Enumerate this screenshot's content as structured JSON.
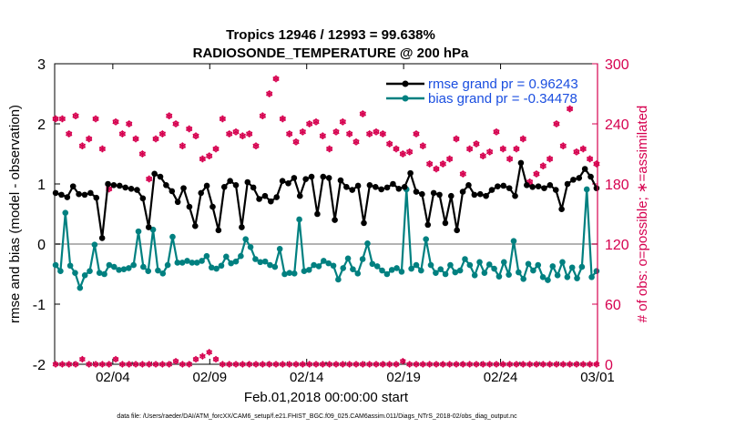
{
  "chart_data": {
    "type": "line",
    "title": "Tropics 12946 / 12993 = 99.638%",
    "subtitle": "RADIOSONDE_TEMPERATURE @ 200 hPa",
    "xlabel": "Feb.01,2018 00:00:00 start",
    "ylabel_left": "rmse and bias (model - observation)",
    "ylabel_right": "# of obs: o=possible; ∗=assimilated",
    "ylim_left": [
      -2,
      3
    ],
    "ylim_right": [
      0,
      300
    ],
    "xlim_days": [
      0,
      28
    ],
    "x_ticks": [
      {
        "day": 3,
        "label": "02/04"
      },
      {
        "day": 8,
        "label": "02/09"
      },
      {
        "day": 13,
        "label": "02/14"
      },
      {
        "day": 18,
        "label": "02/19"
      },
      {
        "day": 23,
        "label": "02/24"
      },
      {
        "day": 28,
        "label": "03/01"
      }
    ],
    "y_ticks_left": [
      "-2",
      "-1",
      "0",
      "1",
      "2",
      "3"
    ],
    "y_ticks_right": [
      "0",
      "60",
      "120",
      "180",
      "240",
      "300"
    ],
    "legend": {
      "position": "top-right",
      "entries": [
        "rmse grand pr = 0.96243",
        "bias grand pr = -0.34478"
      ]
    },
    "colors": {
      "rmse": "#000000",
      "bias": "#008080",
      "obs": "#d6004f",
      "legend_text": "#1a4ee0",
      "zero_line": "#b3b3b3"
    },
    "series": [
      {
        "name": "rmse",
        "values": [
          0.85,
          0.82,
          0.78,
          0.96,
          0.83,
          0.82,
          0.85,
          0.77,
          0.1,
          1.0,
          0.98,
          0.97,
          0.94,
          0.92,
          0.9,
          0.76,
          0.28,
          1.17,
          1.12,
          0.98,
          0.88,
          0.7,
          0.93,
          0.62,
          0.3,
          0.85,
          0.97,
          0.62,
          0.23,
          0.95,
          1.05,
          0.98,
          0.28,
          1.03,
          0.94,
          0.75,
          0.8,
          0.71,
          0.78,
          1.05,
          1.01,
          1.1,
          0.8,
          1.08,
          1.12,
          0.5,
          1.12,
          1.1,
          0.4,
          1.06,
          0.95,
          0.9,
          0.97,
          0.35,
          0.98,
          0.95,
          0.91,
          0.94,
          1.0,
          0.92,
          0.95,
          1.18,
          0.87,
          0.83,
          0.32,
          0.85,
          0.82,
          0.35,
          0.8,
          0.23,
          0.87,
          0.98,
          0.82,
          0.83,
          0.8,
          0.9,
          0.96,
          0.97,
          0.93,
          0.8,
          1.35,
          0.98,
          0.95,
          0.96,
          0.93,
          0.98,
          0.9,
          0.58,
          1.0,
          1.07,
          1.1,
          1.25,
          1.12,
          0.93
        ]
      },
      {
        "name": "bias",
        "values": [
          -0.35,
          -0.45,
          0.52,
          -0.36,
          -0.48,
          -0.73,
          -0.52,
          -0.45,
          -0.01,
          -0.48,
          -0.5,
          -0.35,
          -0.38,
          -0.43,
          -0.42,
          -0.4,
          -0.35,
          0.21,
          -0.38,
          -0.45,
          0.24,
          -0.44,
          -0.49,
          -0.35,
          0.12,
          -0.31,
          -0.31,
          -0.28,
          -0.31,
          -0.31,
          -0.28,
          -0.2,
          -0.39,
          -0.41,
          -0.36,
          -0.21,
          -0.32,
          -0.29,
          -0.2,
          0.08,
          -0.05,
          -0.25,
          -0.3,
          -0.29,
          -0.35,
          -0.38,
          -0.08,
          -0.5,
          -0.48,
          -0.49,
          0.41,
          -0.45,
          -0.43,
          -0.35,
          -0.37,
          -0.28,
          -0.32,
          -0.36,
          -0.59,
          -0.4,
          -0.24,
          -0.42,
          -0.49,
          -0.25,
          0.01,
          -0.33,
          -0.37,
          -0.44,
          -0.5,
          -0.43,
          -0.4,
          -0.46,
          0.91,
          -0.41,
          -0.35,
          -0.44,
          0.08,
          -0.35,
          -0.48,
          -0.42,
          -0.5,
          -0.35,
          -0.47,
          -0.44,
          -0.25,
          -0.35,
          -0.52,
          -0.3,
          -0.48,
          -0.34,
          -0.41,
          -0.54,
          -0.3,
          -0.51,
          0.05,
          -0.47,
          -0.58,
          -0.33,
          -0.44,
          -0.35,
          -0.55,
          -0.6,
          -0.37,
          -0.52,
          -0.3,
          -0.55,
          -0.39,
          -0.57,
          -0.38,
          0.91,
          -0.55,
          -0.45
        ]
      },
      {
        "name": "obs_possible",
        "values": [
          245,
          245,
          230,
          248,
          218,
          225,
          245,
          215,
          175,
          242,
          230,
          240,
          225,
          210,
          185,
          225,
          230,
          248,
          240,
          218,
          235,
          228,
          205,
          208,
          215,
          245,
          230,
          232,
          228,
          230,
          218,
          248,
          270,
          285,
          245,
          230,
          222,
          232,
          240,
          242,
          228,
          215,
          232,
          242,
          230,
          222,
          250,
          230,
          232,
          230,
          220,
          215,
          210,
          212,
          230,
          218,
          200,
          195,
          200,
          205,
          225,
          190,
          215,
          220,
          208,
          212,
          232,
          215,
          205,
          215,
          225,
          182,
          190,
          198,
          205,
          240,
          218,
          255,
          212,
          215,
          205,
          200
        ]
      },
      {
        "name": "obs_assimilated",
        "values": [
          0,
          0,
          0,
          0,
          5,
          0,
          0,
          0,
          0,
          5,
          0,
          0,
          0,
          0,
          0,
          0,
          0,
          0,
          3,
          0,
          0,
          5,
          8,
          12,
          5,
          0,
          0,
          0,
          0,
          0,
          0,
          0,
          0,
          0,
          0,
          0,
          0,
          0,
          0,
          0,
          0,
          0,
          0,
          0,
          0,
          0,
          0,
          0,
          0,
          0,
          0,
          0,
          3,
          0,
          0,
          0,
          0,
          0,
          0,
          0,
          0,
          0,
          0,
          0,
          0,
          0,
          0,
          0,
          0,
          0,
          0,
          0,
          0,
          0,
          0,
          0,
          0,
          0,
          0,
          0,
          0,
          0
        ]
      }
    ]
  },
  "footnote": "data file: /Users/raeder/DAI/ATM_forcXX/CAM6_setup/f.e21.FHIST_BGC.f09_025.CAM6assim.011/Diags_NTrS_2018-02/obs_diag_output.nc"
}
